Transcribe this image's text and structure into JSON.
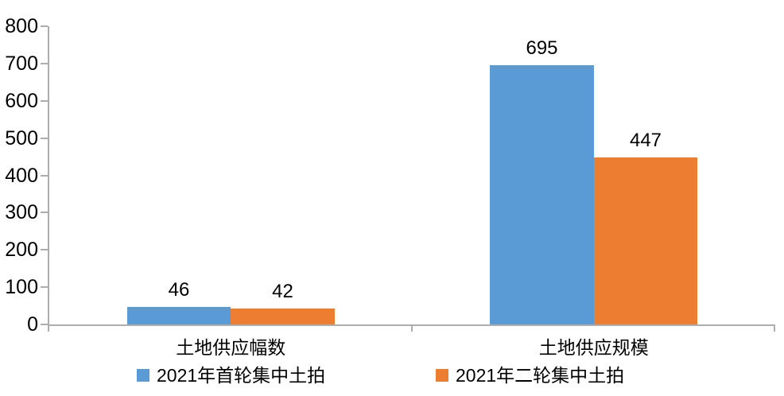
{
  "chart_data": {
    "type": "bar",
    "title": "",
    "xlabel": "",
    "ylabel": "",
    "categories": [
      "土地供应幅数",
      "土地供应规模"
    ],
    "series": [
      {
        "name": "2021年首轮集中土拍",
        "color": "#5B9BD5",
        "values": [
          46,
          695
        ]
      },
      {
        "name": "2021年二轮集中土拍",
        "color": "#ED7D31",
        "values": [
          42,
          447
        ]
      }
    ],
    "value_labels": [
      [
        "46",
        "42"
      ],
      [
        "695",
        "447"
      ]
    ],
    "ylim": [
      0,
      800
    ],
    "yticks": [
      0,
      100,
      200,
      300,
      400,
      500,
      600,
      700,
      800
    ],
    "grid": false,
    "legend_position": "bottom",
    "axis_color": "#adadad",
    "text_color": "#000000",
    "background_color": "#ffffff"
  }
}
